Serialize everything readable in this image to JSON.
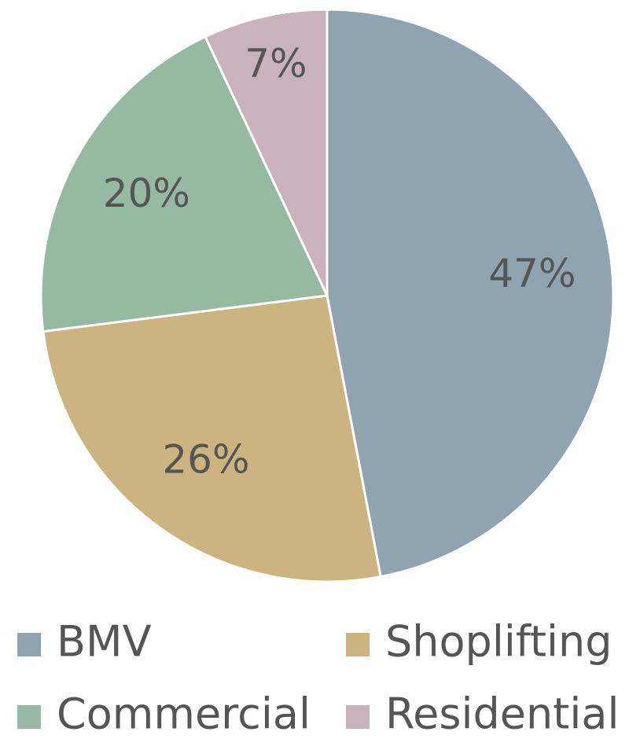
{
  "chart_data": {
    "type": "pie",
    "categories": [
      "BMV",
      "Shoplifting",
      "Commercial",
      "Residential"
    ],
    "values": [
      47,
      26,
      20,
      7
    ],
    "value_labels": [
      "47%",
      "26%",
      "20%",
      "7%"
    ],
    "colors": [
      "#8fa3b1",
      "#cbb480",
      "#95b9a1",
      "#c9b2bb"
    ]
  }
}
